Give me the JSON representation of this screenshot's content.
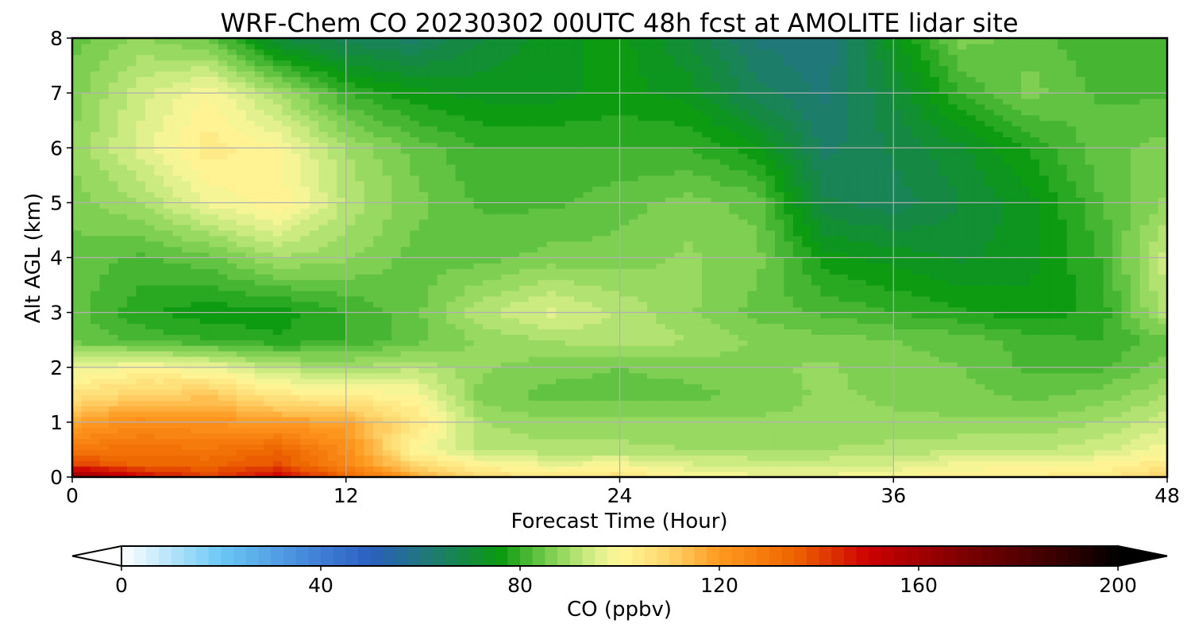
{
  "chart_data": {
    "type": "heatmap",
    "title": "WRF-Chem CO  20230302 00UTC 48h fcst at AMOLITE lidar site",
    "xlabel": "Forecast Time (Hour)",
    "ylabel": "Alt AGL (km)",
    "xlim": [
      0,
      48
    ],
    "ylim": [
      0,
      8
    ],
    "x_ticks": [
      "0",
      "12",
      "24",
      "36",
      "48"
    ],
    "y_ticks": [
      "0",
      "1",
      "2",
      "3",
      "4",
      "5",
      "6",
      "7",
      "8"
    ],
    "grid": true,
    "x": [
      0,
      3,
      6,
      9,
      12,
      15,
      18,
      21,
      24,
      27,
      30,
      33,
      36,
      39,
      42,
      45,
      48
    ],
    "y": [
      0,
      0.25,
      0.5,
      1,
      1.5,
      2,
      2.5,
      3,
      4,
      5,
      6,
      7,
      8
    ],
    "z": [
      [
        165,
        150,
        140,
        150,
        135,
        118,
        108,
        104,
        107,
        100,
        98,
        98,
        100,
        102,
        103,
        104,
        110
      ],
      [
        140,
        134,
        134,
        138,
        125,
        108,
        100,
        97,
        98,
        95,
        94,
        94,
        95,
        98,
        99,
        100,
        104
      ],
      [
        130,
        132,
        130,
        135,
        124,
        100,
        92,
        91,
        91,
        90,
        90,
        90,
        91,
        92,
        92,
        94,
        99
      ],
      [
        118,
        124,
        122,
        120,
        118,
        105,
        90,
        88,
        88,
        88,
        88,
        88,
        88,
        88,
        88,
        90,
        94
      ],
      [
        106,
        110,
        112,
        104,
        102,
        100,
        86,
        84,
        84,
        84,
        86,
        88,
        87,
        86,
        84,
        86,
        90
      ],
      [
        97,
        100,
        98,
        92,
        90,
        92,
        88,
        86,
        85,
        86,
        87,
        88,
        86,
        85,
        82,
        82,
        86
      ],
      [
        84,
        82,
        80,
        78,
        80,
        84,
        88,
        90,
        92,
        90,
        87,
        86,
        85,
        84,
        81,
        80,
        84
      ],
      [
        84,
        78,
        76,
        76,
        80,
        84,
        92,
        96,
        92,
        88,
        84,
        82,
        80,
        78,
        76,
        78,
        92
      ],
      [
        84,
        82,
        84,
        90,
        88,
        84,
        84,
        86,
        86,
        88,
        86,
        76,
        74,
        72,
        74,
        80,
        94
      ],
      [
        86,
        90,
        98,
        102,
        92,
        86,
        82,
        82,
        84,
        86,
        84,
        68,
        66,
        70,
        74,
        82,
        88
      ],
      [
        88,
        96,
        104,
        100,
        90,
        84,
        80,
        80,
        80,
        80,
        76,
        64,
        68,
        72,
        78,
        84,
        86
      ],
      [
        86,
        94,
        100,
        90,
        80,
        76,
        74,
        74,
        76,
        74,
        66,
        62,
        70,
        80,
        86,
        82,
        82
      ],
      [
        84,
        88,
        84,
        70,
        66,
        64,
        70,
        74,
        76,
        70,
        62,
        60,
        74,
        86,
        84,
        80,
        82
      ]
    ],
    "colorbar": {
      "label": "CO  (ppbv)",
      "vmin": 0,
      "vmax": 200,
      "ticks": [
        "0",
        "40",
        "80",
        "120",
        "160",
        "200"
      ],
      "extend": "both",
      "colors": [
        {
          "v": 0,
          "c": "#ffffff"
        },
        {
          "v": 20,
          "c": "#6bc8f5"
        },
        {
          "v": 40,
          "c": "#3f7ed6"
        },
        {
          "v": 50,
          "c": "#2a5fbf"
        },
        {
          "v": 62,
          "c": "#1f7a74"
        },
        {
          "v": 76,
          "c": "#0a9a10"
        },
        {
          "v": 86,
          "c": "#7ccf50"
        },
        {
          "v": 95,
          "c": "#d8ef88"
        },
        {
          "v": 100,
          "c": "#fff79a"
        },
        {
          "v": 110,
          "c": "#ffd36a"
        },
        {
          "v": 120,
          "c": "#ff9a20"
        },
        {
          "v": 135,
          "c": "#ee6500"
        },
        {
          "v": 150,
          "c": "#cc0000"
        },
        {
          "v": 170,
          "c": "#7a0000"
        },
        {
          "v": 190,
          "c": "#300000"
        },
        {
          "v": 200,
          "c": "#000000"
        }
      ]
    }
  }
}
